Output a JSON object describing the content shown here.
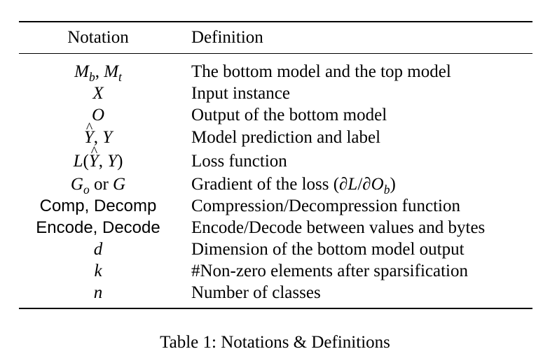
{
  "table": {
    "headers": {
      "notation": "Notation",
      "definition": "Definition"
    },
    "rows": [
      {
        "notation": "Mb, Mt",
        "definition": "The bottom model and the top model"
      },
      {
        "notation": "X",
        "definition": "Input instance"
      },
      {
        "notation": "O",
        "definition": "Output of the bottom model"
      },
      {
        "notation": "Ŷ, Y",
        "definition": "Model prediction and label"
      },
      {
        "notation": "L(Ŷ, Y)",
        "definition": "Loss function"
      },
      {
        "notation": "Go or G",
        "definition": "Gradient of the loss (∂L/∂Ob)"
      },
      {
        "notation": "Comp, Decomp",
        "definition": "Compression/Decompression function"
      },
      {
        "notation": "Encode, Decode",
        "definition": "Encode/Decode between values and bytes"
      },
      {
        "notation": "d",
        "definition": "Dimension of the bottom model output"
      },
      {
        "notation": "k",
        "definition": "#Non-zero elements after sparsification"
      },
      {
        "notation": "n",
        "definition": "Number of classes"
      }
    ]
  },
  "caption": "Table 1: Notations & Definitions"
}
